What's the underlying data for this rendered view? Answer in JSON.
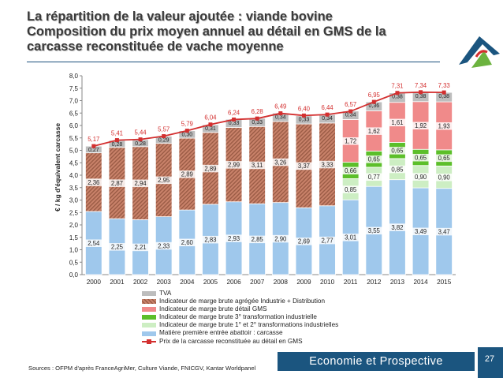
{
  "title": {
    "line1": "La répartition de la valeur ajoutée : viande bovine",
    "line2": "Composition du prix moyen annuel au détail en GMS de la",
    "line3": "carcasse reconstituée de vache moyenne"
  },
  "footer": {
    "band": "Economie et Prospective",
    "page_number": "27",
    "source": "Sources : OFPM d'après FranceAgriMer, Culture Viande, FNICGV, Kantar Worldpanel"
  },
  "colors": {
    "tva": "#bdbdbd",
    "marge_agregee": "#c9826a",
    "marge_gms": "#f08a8a",
    "marge_3e": "#5cbf2a",
    "marge_1e2e": "#cdeec3",
    "matiere": "#9fc8ec",
    "prix": "#d32f2f",
    "footer_band": "#1b557f"
  },
  "chart_data": {
    "type": "bar",
    "stacked": true,
    "ylabel": "€ / kg d'équivalent carcasse",
    "ylim": [
      0,
      8
    ],
    "yticks": [
      "0,0",
      "0,5",
      "1,0",
      "1,5",
      "2,0",
      "2,5",
      "3,0",
      "3,5",
      "4,0",
      "4,5",
      "5,0",
      "5,5",
      "6,0",
      "6,5",
      "7,0",
      "7,5",
      "8,0"
    ],
    "categories": [
      "2000",
      "2001",
      "2002",
      "2003",
      "2004",
      "2005",
      "2006",
      "2007",
      "2008",
      "2009",
      "2010",
      "2011",
      "2012",
      "2013",
      "2014",
      "2015"
    ],
    "series": [
      {
        "key": "matiere",
        "name": "Matière première entrée abattoir : carcasse",
        "values": [
          2.54,
          2.25,
          2.21,
          2.33,
          2.6,
          2.83,
          2.93,
          2.85,
          2.9,
          2.69,
          2.77,
          3.01,
          3.55,
          3.82,
          3.49,
          3.47
        ],
        "labels": [
          "2,54",
          "2,25",
          "2,21",
          "2,33",
          "2,60",
          "2,83",
          "2,93",
          "2,85",
          "2,90",
          "2,69",
          "2,77",
          "3,01",
          "3,55",
          "3,82",
          "3,49",
          "3,47"
        ]
      },
      {
        "key": "marge_1e2e",
        "name": "Indicateur de marge brute 1° et 2° transformations industrielles",
        "values": [
          null,
          null,
          null,
          null,
          null,
          null,
          null,
          null,
          null,
          null,
          null,
          0.85,
          0.77,
          0.85,
          0.9,
          0.9
        ],
        "labels": [
          "",
          "",
          "",
          "",
          "",
          "",
          "",
          "",
          "",
          "",
          "",
          "0,85",
          "0,77",
          "0,85",
          "0,90",
          "0,90"
        ]
      },
      {
        "key": "marge_3e",
        "name": "Indicateur de marge brute 3° transformation industrielle",
        "values": [
          null,
          null,
          null,
          null,
          null,
          null,
          null,
          null,
          null,
          null,
          null,
          0.66,
          0.65,
          0.65,
          0.65,
          0.65
        ],
        "labels": [
          "",
          "",
          "",
          "",
          "",
          "",
          "",
          "",
          "",
          "",
          "",
          "0,66",
          "0,65",
          "0,65",
          "0,65",
          "0,65"
        ]
      },
      {
        "key": "marge_gms",
        "name": "Indicateur de marge brute détail GMS",
        "values": [
          null,
          null,
          null,
          null,
          null,
          null,
          null,
          null,
          null,
          null,
          null,
          1.72,
          1.62,
          1.61,
          1.92,
          1.93
        ],
        "labels": [
          "",
          "",
          "",
          "",
          "",
          "",
          "",
          "",
          "",
          "",
          "",
          "1,72",
          "1,62",
          "1,61",
          "1,92",
          "1,93"
        ]
      },
      {
        "key": "marge_agregee",
        "name": "Indicateur de marge brute agrégée Industrie + Distribution",
        "values": [
          2.36,
          2.87,
          2.94,
          2.95,
          2.89,
          2.89,
          2.99,
          3.11,
          3.26,
          3.37,
          3.33,
          null,
          null,
          null,
          null,
          null
        ],
        "labels": [
          "2,36",
          "2,87",
          "2,94",
          "2,95",
          "2,89",
          "2,89",
          "2,99",
          "3,11",
          "3,26",
          "3,37",
          "3,33",
          "",
          "",
          "",
          "",
          ""
        ]
      },
      {
        "key": "tva",
        "name": "TVA",
        "values": [
          0.27,
          0.28,
          0.28,
          0.29,
          0.3,
          0.31,
          0.33,
          0.33,
          0.34,
          0.33,
          0.34,
          0.34,
          0.36,
          0.38,
          0.38,
          0.38
        ],
        "labels": [
          "0,27",
          "0,28",
          "0,28",
          "0,29",
          "0,30",
          "0,31",
          "0,33",
          "0,33",
          "0,34",
          "0,33",
          "0,34",
          "0,34",
          "0,36",
          "0,38",
          "0,38",
          "0,38"
        ]
      }
    ],
    "line": {
      "name": "Prix de la carcasse reconstituée au détail en GMS",
      "values": [
        5.17,
        5.41,
        5.44,
        5.57,
        5.79,
        6.04,
        6.24,
        6.28,
        6.49,
        6.4,
        6.44,
        6.57,
        6.95,
        7.31,
        7.34,
        7.33
      ],
      "labels": [
        "5,17",
        "5,41",
        "5,44",
        "5,57",
        "5,79",
        "6,04",
        "6,24",
        "6,28",
        "6,49",
        "6,40",
        "6,44",
        "6,57",
        "6,95",
        "7,31",
        "7,34",
        "7,33"
      ]
    },
    "legend_order": [
      "tva",
      "marge_agregee",
      "marge_gms",
      "marge_3e",
      "marge_1e2e",
      "matiere",
      "prix"
    ],
    "legend_position": "bottom"
  }
}
